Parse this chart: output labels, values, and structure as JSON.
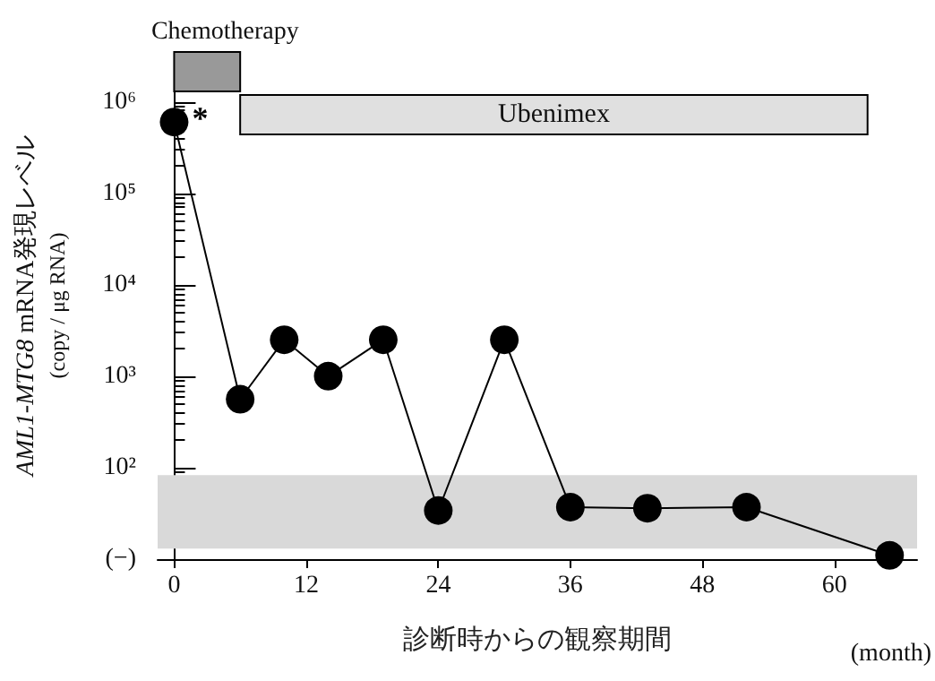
{
  "chart_data": {
    "type": "line",
    "xlabel": "診断時からの観察期間",
    "ylabel": "AML1-MTG8 mRNA発現レベル\n(copy / μg RNA)",
    "x": [
      0,
      6,
      10,
      14,
      19,
      24,
      30,
      36,
      43,
      52,
      65
    ],
    "series": [
      {
        "color": "#000000",
        "values": [
          600000,
          560,
          2500,
          1000,
          2500,
          34,
          2500,
          37,
          36,
          37,
          11
        ]
      }
    ],
    "xlim": [
      -1.5,
      67.5
    ],
    "xticks": [
      0,
      12,
      24,
      36,
      48,
      60
    ],
    "log": "y",
    "ylim": [
      10,
      3500000
    ],
    "yticks": [
      {
        "value": 10,
        "label": "(−)"
      },
      {
        "value": 100,
        "label": "10²"
      },
      {
        "value": 1000,
        "label": "10³"
      },
      {
        "value": 10000,
        "label": "10⁴"
      },
      {
        "value": 100000,
        "label": "10⁵"
      },
      {
        "value": 1000000,
        "label": "10⁶"
      }
    ],
    "bands": [
      {
        "axis": "x",
        "from": 0,
        "to": 6,
        "label": "Chemotherapy",
        "color": "#999999"
      },
      {
        "axis": "x",
        "from": 6,
        "to": 63,
        "label": "Ubenimex",
        "color": "#e0e0e0"
      },
      {
        "axis": "y",
        "from": 13,
        "to": 83,
        "color": "#d9d9d9"
      }
    ],
    "annotations": [
      {
        "text": "*",
        "x": 0,
        "y": 600000
      },
      "(month)"
    ],
    "marker": "circle",
    "line_style": "solid",
    "grid": false
  }
}
